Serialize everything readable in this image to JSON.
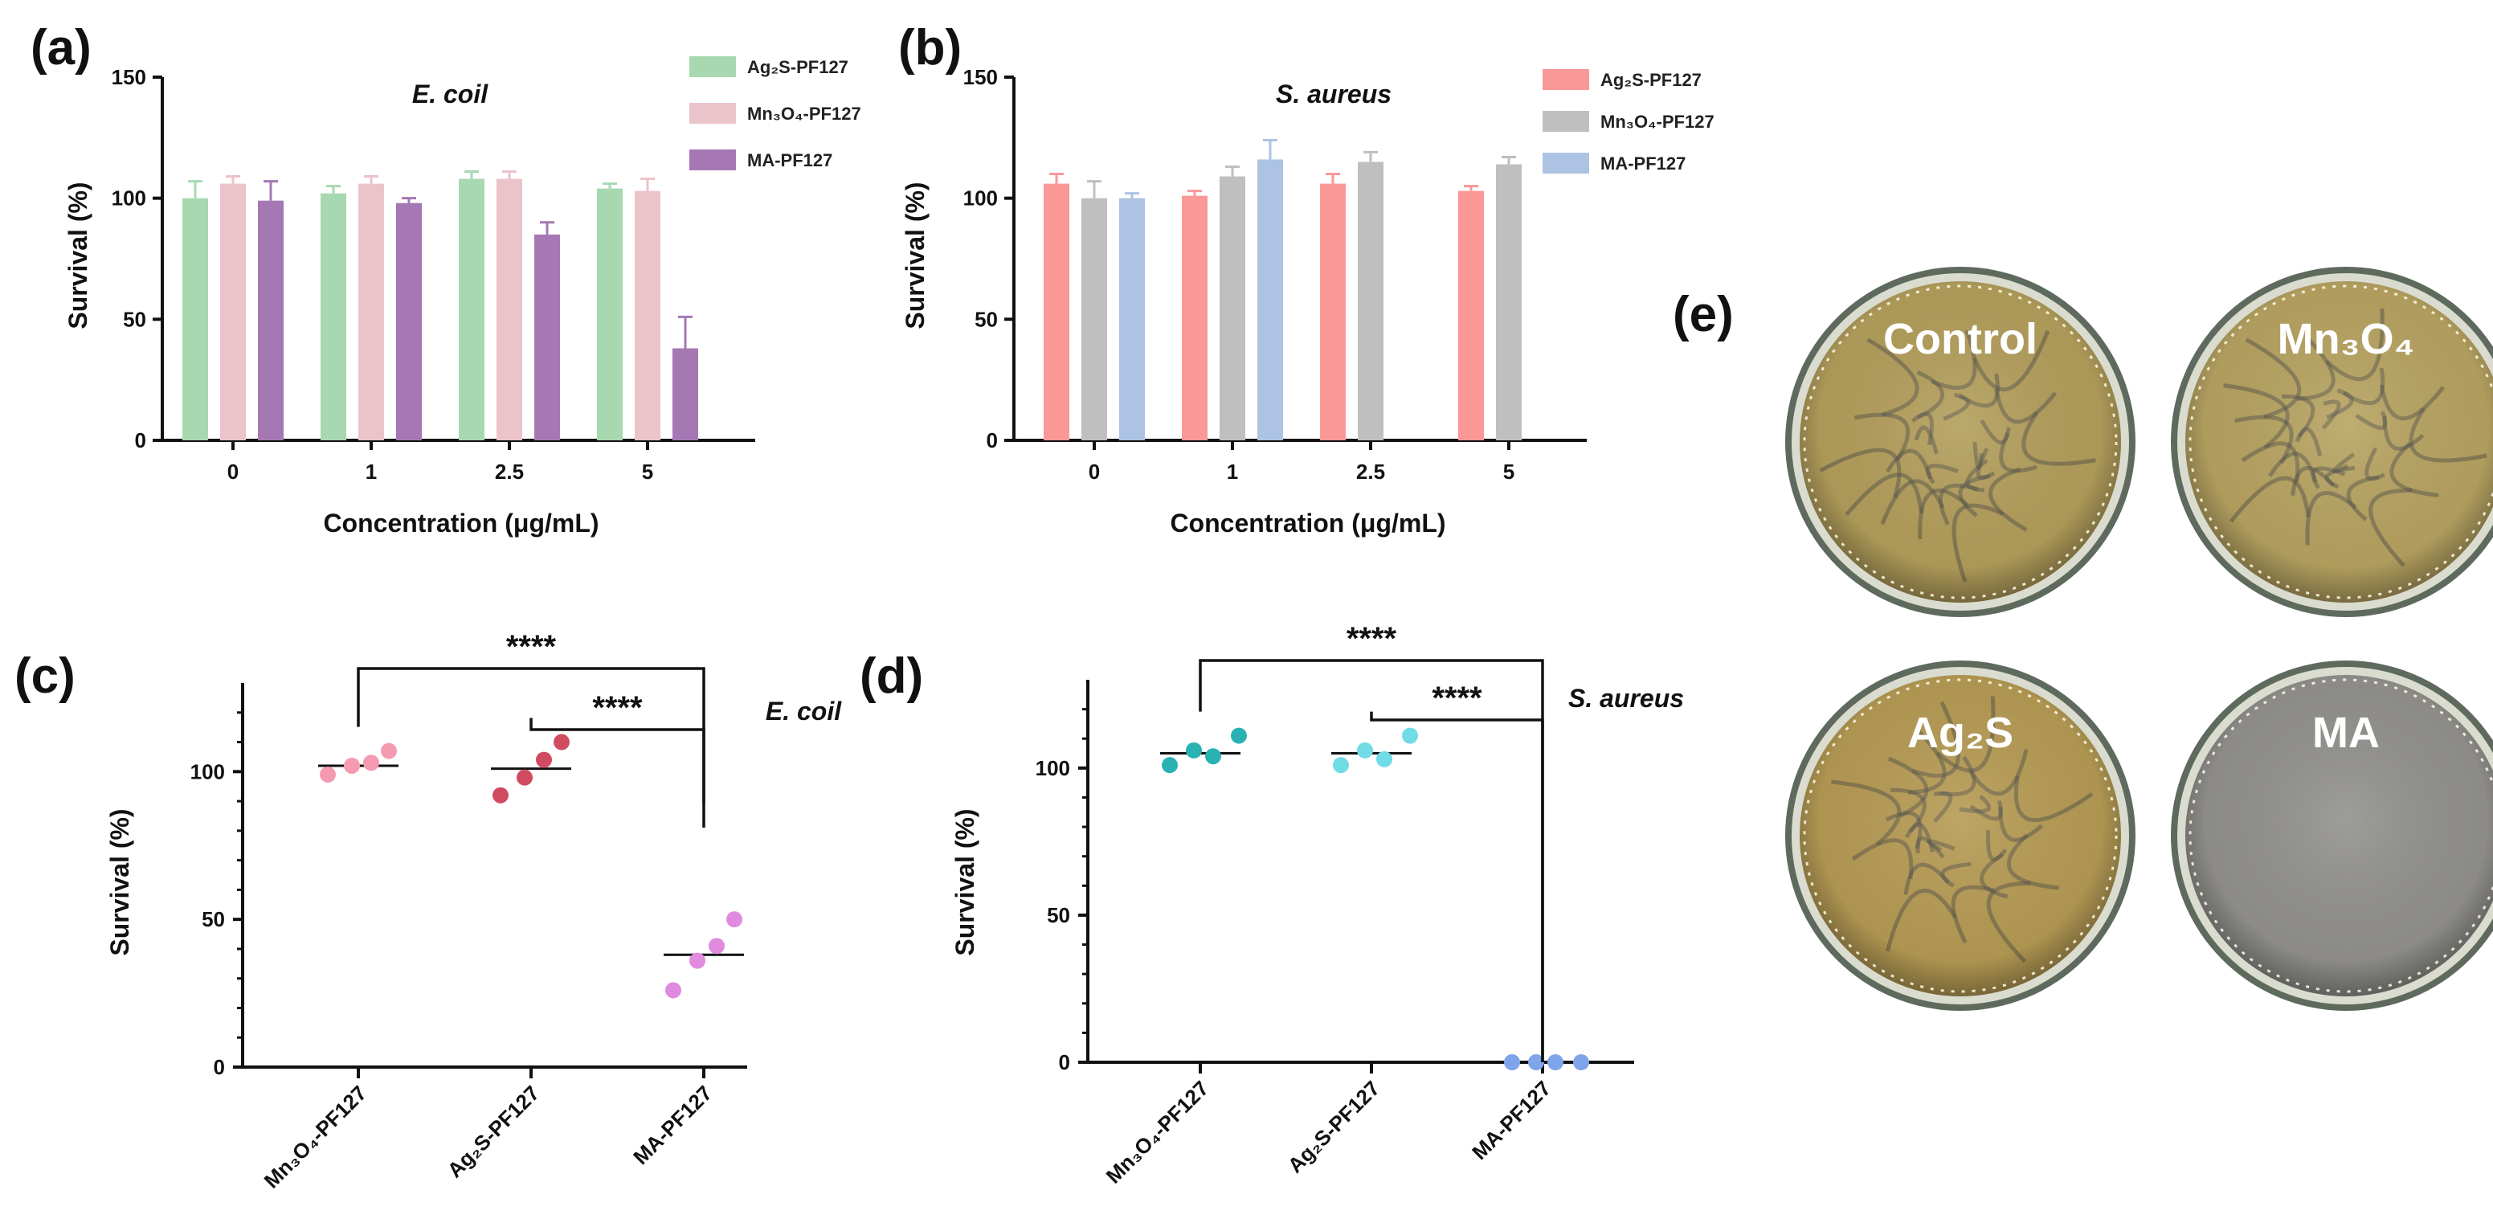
{
  "chart_data": [
    {
      "id": "a",
      "panel_label": "(a)",
      "type": "bar",
      "title": "E. coil",
      "xlabel": "Concentration (μg/mL)",
      "ylabel": "Survival (%)",
      "ylim": [
        0,
        150
      ],
      "yticks": [
        "0",
        "50",
        "100",
        "150"
      ],
      "categories": [
        "0",
        "1",
        "2.5",
        "5"
      ],
      "series": [
        {
          "name": "Ag₂S-PF127",
          "color": "#a8d8b0",
          "values": [
            100,
            102,
            108,
            104
          ],
          "errors": [
            7,
            3,
            3,
            2
          ]
        },
        {
          "name": "Mn₃O₄-PF127",
          "color": "#ebc3cb",
          "values": [
            106,
            106,
            108,
            103
          ],
          "errors": [
            3,
            3,
            3,
            5
          ]
        },
        {
          "name": "MA-PF127",
          "color": "#a578b4",
          "values": [
            99,
            98,
            85,
            38
          ],
          "errors": [
            8,
            2,
            5,
            13
          ]
        }
      ]
    },
    {
      "id": "b",
      "panel_label": "(b)",
      "type": "bar",
      "title": "S. aureus",
      "xlabel": "Concentration (μg/mL)",
      "ylabel": "Survival (%)",
      "ylim": [
        0,
        150
      ],
      "yticks": [
        "0",
        "50",
        "100",
        "150"
      ],
      "categories": [
        "0",
        "1",
        "2.5",
        "5"
      ],
      "series": [
        {
          "name": "Ag₂S-PF127",
          "color": "#f99896",
          "values": [
            106,
            101,
            106,
            103
          ],
          "errors": [
            4,
            2,
            4,
            2
          ]
        },
        {
          "name": "Mn₃O₄-PF127",
          "color": "#bfbfbf",
          "values": [
            100,
            109,
            115,
            114
          ],
          "errors": [
            7,
            4,
            4,
            3
          ]
        },
        {
          "name": "MA-PF127",
          "color": "#acc3e3",
          "values": [
            100,
            116,
            0,
            0
          ],
          "errors": [
            2,
            8,
            0,
            0
          ]
        }
      ]
    },
    {
      "id": "c",
      "panel_label": "(c)",
      "type": "scatter",
      "title": "E. coil",
      "ylabel": "Survival (%)",
      "ylim": [
        0,
        130
      ],
      "yticks": [
        "0",
        "50",
        "100"
      ],
      "categories": [
        "Mn₃O₄-PF127",
        "Ag₂S-PF127",
        "MA-PF127"
      ],
      "groups": [
        {
          "name": "Mn₃O₄-PF127",
          "color": "#f59ab0",
          "points": [
            99,
            102,
            103,
            107
          ],
          "mean": 102
        },
        {
          "name": "Ag₂S-PF127",
          "color": "#d04a60",
          "points": [
            92,
            98,
            104,
            110
          ],
          "mean": 101
        },
        {
          "name": "MA-PF127",
          "color": "#e08ae0",
          "points": [
            26,
            36,
            41,
            50
          ],
          "mean": 38
        }
      ],
      "comparisons": [
        {
          "from": "Mn₃O₄-PF127",
          "to": "MA-PF127",
          "label": "****"
        },
        {
          "from": "Ag₂S-PF127",
          "to": "MA-PF127",
          "label": "****"
        }
      ]
    },
    {
      "id": "d",
      "panel_label": "(d)",
      "type": "scatter",
      "title": "S. aureus",
      "ylabel": "Survival (%)",
      "ylim": [
        0,
        130
      ],
      "yticks": [
        "0",
        "50",
        "100"
      ],
      "categories": [
        "Mn₃O₄-PF127",
        "Ag₂S-PF127",
        "MA-PF127"
      ],
      "groups": [
        {
          "name": "Mn₃O₄-PF127",
          "color": "#2ab2b2",
          "points": [
            101,
            106,
            104,
            111
          ],
          "mean": 105
        },
        {
          "name": "Ag₂S-PF127",
          "color": "#70dce6",
          "points": [
            101,
            106,
            103,
            111
          ],
          "mean": 105
        },
        {
          "name": "MA-PF127",
          "color": "#7fa4ea",
          "points": [
            0,
            0,
            0,
            0
          ],
          "mean": 0
        }
      ],
      "comparisons": [
        {
          "from": "Mn₃O₄-PF127",
          "to": "MA-PF127",
          "label": "****"
        },
        {
          "from": "Ag₂S-PF127",
          "to": "MA-PF127",
          "label": "****"
        }
      ]
    }
  ],
  "panel_e": {
    "label": "(e)",
    "plates": [
      {
        "label": "Control",
        "agar": "#b49f5c",
        "lawn": true
      },
      {
        "label": "Mn₃O₄",
        "agar": "#b8a462",
        "lawn": true
      },
      {
        "label": "Ag₂S",
        "agar": "#b79c55",
        "lawn": true
      },
      {
        "label": "MA",
        "agar": "#93928e",
        "lawn": false
      }
    ]
  }
}
